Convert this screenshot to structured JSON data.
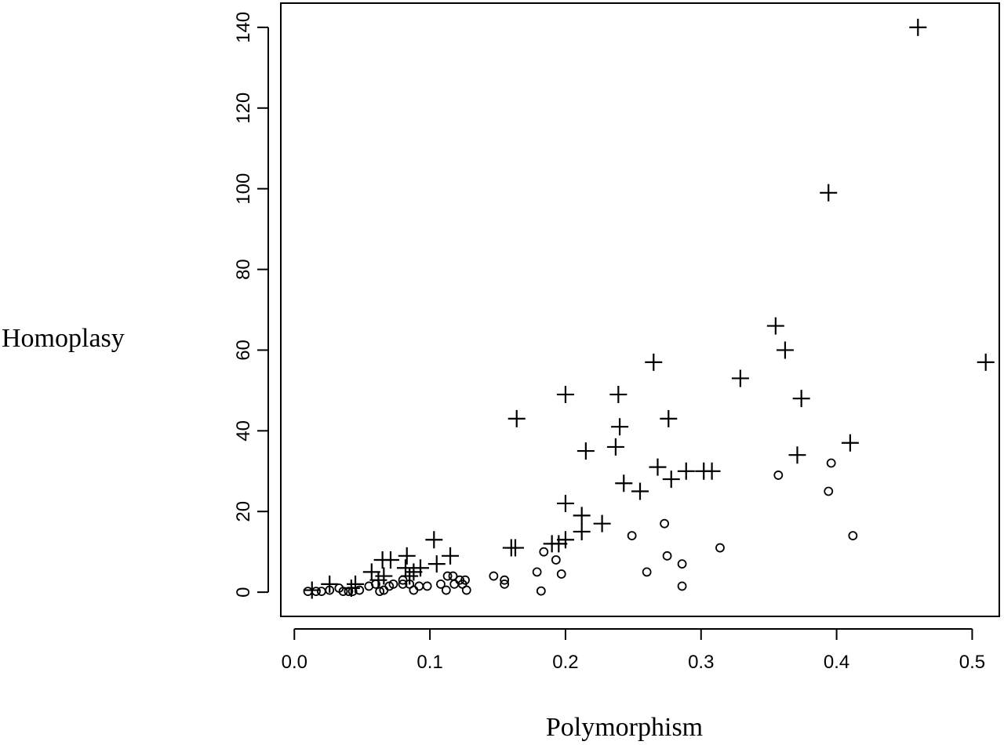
{
  "chart_data": {
    "type": "scatter",
    "title": "",
    "xlabel": "Polymorphism",
    "ylabel": "Homoplasy",
    "xlim": [
      -0.01,
      0.52
    ],
    "ylim": [
      -6,
      146
    ],
    "xticks": [
      0.0,
      0.1,
      0.2,
      0.3,
      0.4,
      0.5
    ],
    "xtick_labels": [
      "0.0",
      "0.1",
      "0.2",
      "0.3",
      "0.4",
      "0.5"
    ],
    "yticks": [
      0,
      20,
      40,
      60,
      80,
      100,
      120,
      140
    ],
    "ytick_labels": [
      "0",
      "20",
      "40",
      "60",
      "80",
      "100",
      "120",
      "140"
    ],
    "grid": false,
    "legend": "none",
    "series": [
      {
        "marker": "plus",
        "points": [
          [
            0.013,
            0.5
          ],
          [
            0.026,
            2
          ],
          [
            0.042,
            1
          ],
          [
            0.045,
            2
          ],
          [
            0.057,
            5
          ],
          [
            0.062,
            3
          ],
          [
            0.065,
            8
          ],
          [
            0.066,
            4
          ],
          [
            0.071,
            8
          ],
          [
            0.082,
            6
          ],
          [
            0.083,
            9
          ],
          [
            0.085,
            4
          ],
          [
            0.088,
            5
          ],
          [
            0.093,
            6
          ],
          [
            0.103,
            13
          ],
          [
            0.105,
            7
          ],
          [
            0.115,
            9
          ],
          [
            0.16,
            11
          ],
          [
            0.163,
            11
          ],
          [
            0.164,
            43
          ],
          [
            0.19,
            12
          ],
          [
            0.195,
            12
          ],
          [
            0.2,
            49
          ],
          [
            0.2,
            13
          ],
          [
            0.2,
            22
          ],
          [
            0.212,
            15
          ],
          [
            0.212,
            19
          ],
          [
            0.215,
            35
          ],
          [
            0.227,
            17
          ],
          [
            0.237,
            36
          ],
          [
            0.239,
            49
          ],
          [
            0.24,
            41
          ],
          [
            0.243,
            27
          ],
          [
            0.255,
            25
          ],
          [
            0.265,
            57
          ],
          [
            0.268,
            31
          ],
          [
            0.276,
            43
          ],
          [
            0.278,
            28
          ],
          [
            0.289,
            30
          ],
          [
            0.302,
            30
          ],
          [
            0.308,
            30
          ],
          [
            0.329,
            53
          ],
          [
            0.355,
            66
          ],
          [
            0.362,
            60
          ],
          [
            0.371,
            34
          ],
          [
            0.374,
            48
          ],
          [
            0.394,
            99
          ],
          [
            0.41,
            37
          ],
          [
            0.46,
            140
          ],
          [
            0.51,
            57
          ]
        ]
      },
      {
        "marker": "circle",
        "points": [
          [
            0.01,
            0.2
          ],
          [
            0.016,
            0.2
          ],
          [
            0.02,
            0.2
          ],
          [
            0.026,
            0.5
          ],
          [
            0.033,
            1
          ],
          [
            0.036,
            0.2
          ],
          [
            0.04,
            0.2
          ],
          [
            0.043,
            0.2
          ],
          [
            0.048,
            0.5
          ],
          [
            0.055,
            1.5
          ],
          [
            0.06,
            2
          ],
          [
            0.063,
            0.2
          ],
          [
            0.066,
            0.5
          ],
          [
            0.07,
            1.5
          ],
          [
            0.073,
            2
          ],
          [
            0.08,
            3
          ],
          [
            0.08,
            2
          ],
          [
            0.085,
            2
          ],
          [
            0.088,
            0.5
          ],
          [
            0.092,
            1.5
          ],
          [
            0.098,
            1.5
          ],
          [
            0.108,
            2
          ],
          [
            0.112,
            0.5
          ],
          [
            0.113,
            4
          ],
          [
            0.117,
            4
          ],
          [
            0.118,
            2
          ],
          [
            0.122,
            3
          ],
          [
            0.124,
            2
          ],
          [
            0.126,
            3
          ],
          [
            0.127,
            0.5
          ],
          [
            0.147,
            4
          ],
          [
            0.155,
            3
          ],
          [
            0.155,
            2
          ],
          [
            0.179,
            5
          ],
          [
            0.182,
            0.3
          ],
          [
            0.184,
            10
          ],
          [
            0.193,
            8
          ],
          [
            0.197,
            4.5
          ],
          [
            0.249,
            14
          ],
          [
            0.26,
            5
          ],
          [
            0.273,
            17
          ],
          [
            0.275,
            9
          ],
          [
            0.286,
            7
          ],
          [
            0.286,
            1.5
          ],
          [
            0.314,
            11
          ],
          [
            0.357,
            29
          ],
          [
            0.394,
            25
          ],
          [
            0.396,
            32
          ],
          [
            0.412,
            14
          ]
        ]
      }
    ]
  }
}
